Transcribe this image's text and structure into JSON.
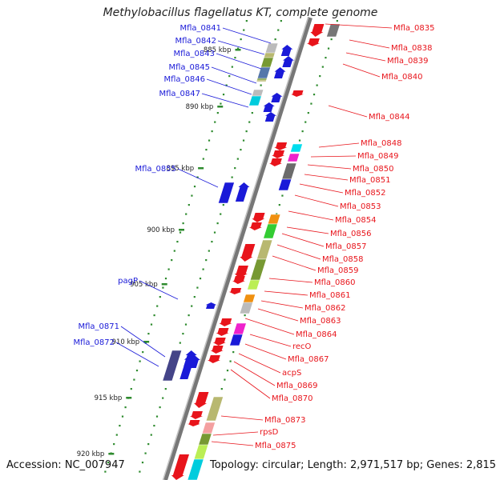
{
  "title": "Methylobacillus flagellatus KT, complete genome",
  "footer": {
    "accession": "Accession: NC_007947",
    "topology": "Topology: circular; Length: 2,971,517 bp; Genes: 2,815"
  },
  "ticks": [
    "885 kbp",
    "890 kbp",
    "895 kbp",
    "900 kbp",
    "905 kbp",
    "910 kbp",
    "915 kbp",
    "920 kbp"
  ],
  "left_labels": [
    "Mfla_0841",
    "Mfla_0842",
    "Mfla_0843",
    "Mfla_0845",
    "Mfla_0846",
    "Mfla_0847",
    "Mfla_0855",
    "pagP",
    "Mfla_0871",
    "Mfla_0872"
  ],
  "right_labels": [
    "Mfla_0835",
    "Mfla_0838",
    "Mfla_0839",
    "Mfla_0840",
    "Mfla_0844",
    "Mfla_0848",
    "Mfla_0849",
    "Mfla_0850",
    "Mfla_0851",
    "Mfla_0852",
    "Mfla_0853",
    "Mfla_0854",
    "Mfla_0856",
    "Mfla_0857",
    "Mfla_0858",
    "Mfla_0859",
    "Mfla_0860",
    "Mfla_0861",
    "Mfla_0862",
    "Mfla_0863",
    "Mfla_0864",
    "recO",
    "Mfla_0867",
    "acpS",
    "Mfla_0869",
    "Mfla_0870",
    "Mfla_0873",
    "rpsD",
    "Mfla_0875"
  ],
  "colors": {
    "forward": "#e8141b",
    "reverse": "#1a1ad8",
    "backbone": "#8a8a8a",
    "tick": "#2e8b2e"
  }
}
